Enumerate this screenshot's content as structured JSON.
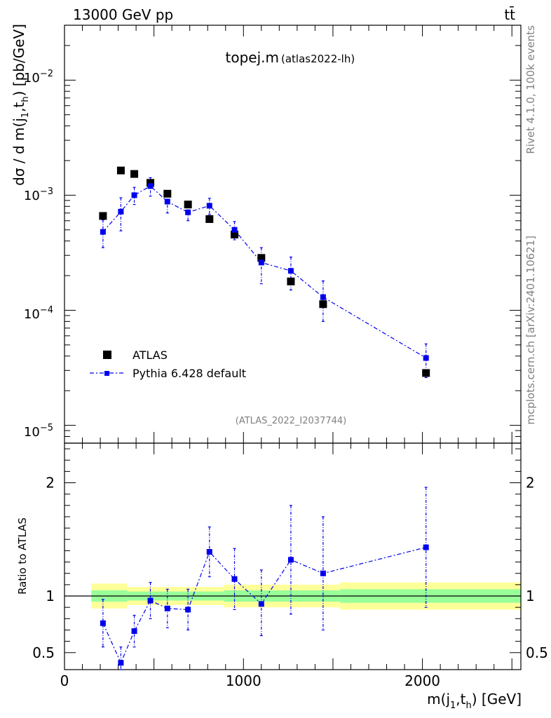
{
  "header": {
    "energy_label": "13000 GeV pp",
    "process_label": "tt̄"
  },
  "side": {
    "rivet_label": "Rivet 4.1.0,  100k events",
    "mcplots_label": "mcplots.cern.ch [arXiv:2401.10621]"
  },
  "colors": {
    "data": "#000000",
    "mc": "#0000ee",
    "band_green": "#99ff99",
    "band_yellow": "#ffff99",
    "grey": "#808080"
  },
  "chart_data": [
    {
      "type": "scatter",
      "title": "topej.m",
      "subtitle": "(atlas2022-lh)",
      "watermark": "(ATLAS_2022_I2037744)",
      "xlabel": "m(j1,th) [GeV]",
      "ylabel": "dσ / d m(j1,th) [pb/GeV]",
      "yscale": "log",
      "xlim": [
        0,
        2550
      ],
      "ylim": [
        7e-06,
        0.03
      ],
      "x_ticks": [
        "0",
        "1000",
        "2000"
      ],
      "y_ticks": [
        "10^-5",
        "10^-4",
        "10^-3",
        "10^-2"
      ],
      "legend": {
        "position": "lower-left",
        "entries": [
          "ATLAS",
          "Pythia 6.428 default"
        ]
      },
      "series": [
        {
          "name": "ATLAS",
          "marker": "square",
          "x": [
            215,
            315,
            390,
            480,
            575,
            690,
            810,
            950,
            1100,
            1265,
            1445,
            2020
          ],
          "y": [
            0.00066,
            0.00164,
            0.00153,
            0.00128,
            0.00103,
            0.00083,
            0.00062,
            0.000455,
            0.000285,
            0.000178,
            0.000113,
            2.85e-05
          ]
        },
        {
          "name": "Pythia 6.428 default",
          "marker": "square-line",
          "x": [
            215,
            315,
            390,
            480,
            575,
            690,
            810,
            950,
            1100,
            1265,
            1445,
            2020
          ],
          "y": [
            0.00048,
            0.00072,
            0.001,
            0.0012,
            0.00088,
            0.00071,
            0.00081,
            0.0005,
            0.00026,
            0.00022,
            0.00013,
            3.85e-05
          ],
          "err_low": [
            0.00013,
            0.00023,
            0.00017,
            0.00022,
            0.00018,
            0.00011,
            0.00013,
            9e-05,
            9e-05,
            7e-05,
            5e-05,
            1.25e-05
          ],
          "err_high": [
            0.00013,
            0.00023,
            0.00017,
            0.00022,
            0.00018,
            0.00011,
            0.00013,
            9e-05,
            9e-05,
            7e-05,
            5e-05,
            1.25e-05
          ]
        }
      ]
    },
    {
      "type": "scatter",
      "title": "",
      "xlabel": "m(j1,th) [GeV]",
      "ylabel": "Ratio to ATLAS",
      "xlim": [
        0,
        2550
      ],
      "ylim": [
        0.35,
        2.35
      ],
      "y_ticks": [
        "0.5",
        "1",
        "2"
      ],
      "reference_line": 1,
      "bands": [
        {
          "x_from": 150,
          "x_to": 350,
          "stat": 0.05,
          "total": 0.11
        },
        {
          "x_from": 350,
          "x_to": 890,
          "stat": 0.04,
          "total": 0.08
        },
        {
          "x_from": 890,
          "x_to": 1540,
          "stat": 0.05,
          "total": 0.1
        },
        {
          "x_from": 1540,
          "x_to": 2550,
          "stat": 0.06,
          "total": 0.12
        }
      ],
      "series": [
        {
          "name": "Pythia 6.428 default / ATLAS",
          "x": [
            215,
            315,
            390,
            480,
            575,
            690,
            810,
            950,
            1100,
            1265,
            1445,
            2020
          ],
          "y": [
            0.76,
            0.41,
            0.69,
            0.96,
            0.89,
            0.88,
            1.39,
            1.15,
            0.93,
            1.32,
            1.2,
            1.43
          ],
          "err_low": [
            0.21,
            0.12,
            0.14,
            0.16,
            0.17,
            0.18,
            0.22,
            0.27,
            0.28,
            0.48,
            0.5,
            0.53
          ],
          "err_high": [
            0.21,
            0.14,
            0.14,
            0.16,
            0.17,
            0.18,
            0.22,
            0.27,
            0.3,
            0.48,
            0.5,
            0.53
          ]
        }
      ]
    }
  ]
}
